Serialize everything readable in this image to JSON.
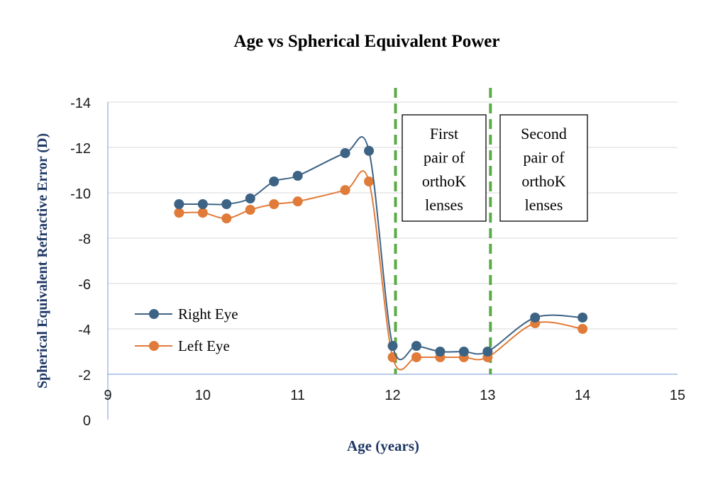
{
  "chart_data": {
    "type": "line",
    "title": "Age vs Spherical Equivalent Power",
    "xlabel": "Age (years)",
    "ylabel": "Spherical Equivalent Refractive Error (D)",
    "xlim": [
      9,
      15
    ],
    "ylim": [
      0,
      -14
    ],
    "y_axis_reversed": true,
    "grid": true,
    "xticks": [
      "9",
      "10",
      "11",
      "12",
      "13",
      "14",
      "15"
    ],
    "yticks": [
      "0",
      "-2",
      "-4",
      "-6",
      "-8",
      "-10",
      "-12",
      "-14"
    ],
    "legend_position": "left",
    "series": [
      {
        "name": "Right Eye",
        "color": "#3d6384",
        "x": [
          9.75,
          10,
          10.25,
          10.5,
          10.75,
          11,
          11.5,
          11.75,
          12,
          12.25,
          12.5,
          12.75,
          13,
          13.5,
          14
        ],
        "y": [
          -9.5,
          -9.5,
          -9.5,
          -9.75,
          -10.5,
          -10.75,
          -11.75,
          -11.85,
          -3.25,
          -3.25,
          -3.0,
          -3.0,
          -3.0,
          -4.5,
          -4.5
        ]
      },
      {
        "name": "Left Eye",
        "color": "#e07b39",
        "x": [
          9.75,
          10,
          10.25,
          10.5,
          10.75,
          11,
          11.5,
          11.75,
          12,
          12.25,
          12.5,
          12.75,
          13,
          13.5,
          14
        ],
        "y": [
          -9.12,
          -9.12,
          -8.87,
          -9.25,
          -9.5,
          -9.62,
          -10.12,
          -10.5,
          -2.75,
          -2.75,
          -2.75,
          -2.75,
          -2.75,
          -4.25,
          -4.0
        ]
      }
    ],
    "vlines": [
      {
        "x": 12,
        "color": "#5aab46",
        "style": "dashed"
      },
      {
        "x": 13,
        "color": "#5aab46",
        "style": "dashed"
      }
    ],
    "annotations": [
      {
        "lines": [
          "First",
          "pair of",
          "orthoK",
          "lenses"
        ]
      },
      {
        "lines": [
          "Second",
          "pair of",
          "orthoK",
          "lenses"
        ]
      }
    ]
  }
}
